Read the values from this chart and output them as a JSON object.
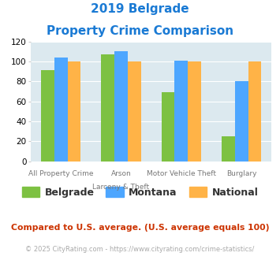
{
  "title_line1": "2019 Belgrade",
  "title_line2": "Property Crime Comparison",
  "cat_labels_line1": [
    "All Property Crime",
    "Arson",
    "Motor Vehicle Theft",
    "Burglary"
  ],
  "cat_labels_line2": [
    "",
    "Larceny & Theft",
    "",
    ""
  ],
  "belgrade": [
    91,
    107,
    69,
    25
  ],
  "montana": [
    104,
    110,
    101,
    80
  ],
  "national": [
    100,
    100,
    100,
    100
  ],
  "belgrade_color": "#7dc142",
  "montana_color": "#4da6ff",
  "national_color": "#ffb347",
  "ylim": [
    0,
    120
  ],
  "yticks": [
    0,
    20,
    40,
    60,
    80,
    100,
    120
  ],
  "background_color": "#dce9ef",
  "footer_text": "Compared to U.S. average. (U.S. average equals 100)",
  "copyright_text": "© 2025 CityRating.com - https://www.cityrating.com/crime-statistics/",
  "title_color": "#1a7ad4",
  "footer_color": "#cc3300",
  "copyright_color": "#aaaaaa",
  "bar_width": 0.22
}
